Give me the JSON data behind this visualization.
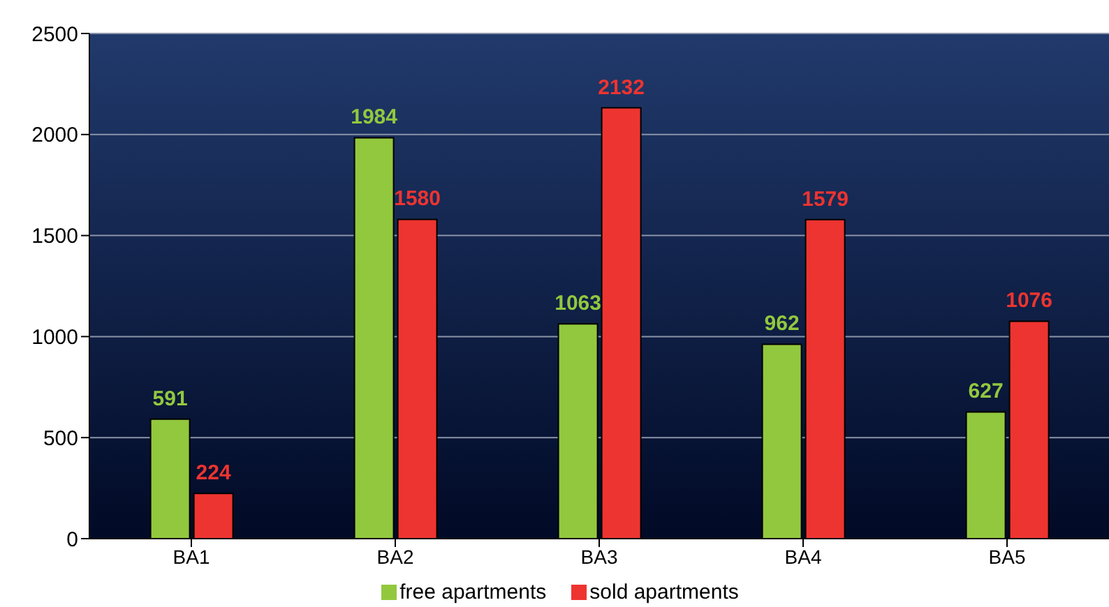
{
  "chart_data": {
    "type": "bar",
    "categories": [
      "BA1",
      "BA2",
      "BA3",
      "BA4",
      "BA5"
    ],
    "series": [
      {
        "name": "free apartments",
        "color": "#92c83e",
        "values": [
          591,
          1984,
          1063,
          962,
          627
        ]
      },
      {
        "name": "sold apartments",
        "color": "#ee3430",
        "values": [
          224,
          1580,
          2132,
          1579,
          1076
        ]
      }
    ],
    "ylim": [
      0,
      2500
    ],
    "yticks": [
      0,
      500,
      1000,
      1500,
      2000,
      2500
    ],
    "grid": "y",
    "legend": "bottom",
    "data_labels": true
  }
}
